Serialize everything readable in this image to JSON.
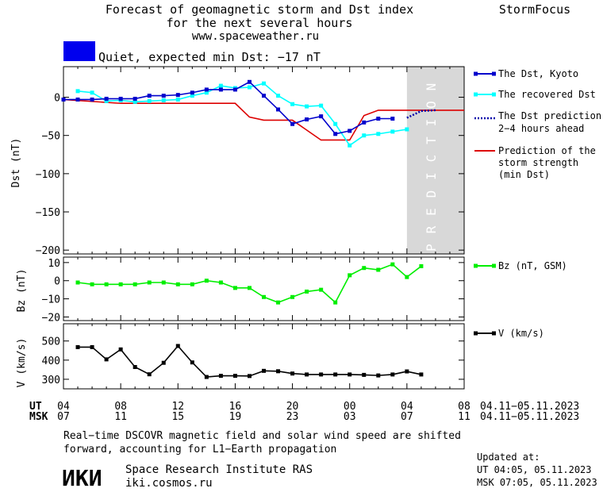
{
  "header": {
    "title_line1": "Forecast of geomagnetic storm and Dst index",
    "title_line2": "for the next several hours",
    "site": "www.spaceweather.ru",
    "brand": "StormFocus"
  },
  "status": {
    "text": "Quiet, expected min Dst: −17 nT",
    "color": "#0000ee"
  },
  "prediction_label": "PREDICTION",
  "colors": {
    "dst_kyoto": "#0000cc",
    "dst_recovered": "#00ffff",
    "dst_prediction": "#0000aa",
    "storm_strength": "#dd0000",
    "bz": "#00ee00",
    "v": "#000000",
    "prediction_band": "#d8d8d8"
  },
  "legend": {
    "dst_kyoto": "The Dst, Kyoto",
    "dst_recovered": "The recovered Dst",
    "dst_prediction_l1": "The Dst prediction",
    "dst_prediction_l2": "2−4 hours ahead",
    "storm_l1": "Prediction of the",
    "storm_l2": "storm strength",
    "storm_l3": "(min Dst)",
    "bz": "Bz (nT, GSM)",
    "v": "V (km/s)"
  },
  "axes": {
    "dst_ylabel": "Dst (nT)",
    "bz_ylabel": "Bz (nT)",
    "v_ylabel": "V (km/s)",
    "ut_label": "UT",
    "msk_label": "MSK",
    "ut_ticks": [
      "04",
      "08",
      "12",
      "16",
      "20",
      "00",
      "04",
      "08"
    ],
    "msk_ticks": [
      "07",
      "11",
      "15",
      "19",
      "23",
      "03",
      "07",
      "11"
    ],
    "ut_range": "04.11−05.11.2023",
    "msk_range": "04.11−05.11.2023"
  },
  "chart_data": [
    {
      "type": "line",
      "panel": "Dst",
      "ylabel": "Dst (nT)",
      "ylim": [
        -205,
        40
      ],
      "yticks": [
        0,
        -50,
        -100,
        -150,
        -200
      ],
      "xlim": [
        0,
        28
      ],
      "x_unit": "hours since 04 UT 04.11.2023",
      "prediction_start": 24,
      "series": [
        {
          "name": "The Dst, Kyoto",
          "x": [
            0,
            1,
            2,
            3,
            4,
            5,
            6,
            7,
            8,
            9,
            10,
            11,
            12,
            13,
            14,
            15,
            16,
            17,
            18,
            19,
            20,
            21,
            22,
            23
          ],
          "values": [
            -3,
            -3,
            -3,
            -2,
            -2,
            -2,
            2,
            2,
            3,
            6,
            10,
            10,
            10,
            20,
            2,
            -16,
            -35,
            -29,
            -25,
            -48,
            -44,
            -33,
            -28,
            -28
          ]
        },
        {
          "name": "The recovered Dst",
          "x": [
            1,
            2,
            3,
            4,
            5,
            6,
            7,
            8,
            9,
            10,
            11,
            12,
            13,
            14,
            15,
            16,
            17,
            18,
            19,
            20,
            21,
            22,
            23,
            24
          ],
          "values": [
            8,
            6,
            -5,
            -4,
            -6,
            -5,
            -4,
            -3,
            2,
            6,
            15,
            12,
            13,
            18,
            2,
            -9,
            -12,
            -11,
            -35,
            -63,
            -50,
            -48,
            -45,
            -42
          ]
        },
        {
          "name": "The Dst prediction 2−4 hours ahead",
          "x": [
            24,
            25,
            26
          ],
          "values": [
            -27,
            -18,
            -17
          ]
        },
        {
          "name": "Prediction of the storm strength (min Dst)",
          "x": [
            0,
            4,
            12,
            13,
            14,
            16,
            18,
            19,
            20,
            21,
            22,
            28
          ],
          "values": [
            -3,
            -8,
            -8,
            -26,
            -30,
            -30,
            -56,
            -56,
            -56,
            -24,
            -17,
            -17
          ]
        }
      ]
    },
    {
      "type": "line",
      "panel": "Bz",
      "ylabel": "Bz (nT)",
      "ylim": [
        -22,
        13
      ],
      "yticks": [
        10,
        0,
        -10,
        -20
      ],
      "series": [
        {
          "name": "Bz (nT, GSM)",
          "x": [
            1,
            2,
            3,
            4,
            5,
            6,
            7,
            8,
            9,
            10,
            11,
            12,
            13,
            14,
            15,
            16,
            17,
            18,
            19,
            20,
            21,
            22,
            23,
            24,
            25
          ],
          "values": [
            -1,
            -2,
            -2,
            -2,
            -2,
            -1,
            -1,
            -2,
            -2,
            0,
            -1,
            -4,
            -4,
            -9,
            -12,
            -9,
            -6,
            -5,
            -12,
            3,
            7,
            6,
            9,
            2,
            8
          ]
        }
      ]
    },
    {
      "type": "line",
      "panel": "V",
      "ylabel": "V (km/s)",
      "ylim": [
        250,
        590
      ],
      "yticks": [
        500,
        400,
        300
      ],
      "series": [
        {
          "name": "V (km/s)",
          "x": [
            1,
            2,
            3,
            4,
            5,
            6,
            7,
            8,
            9,
            10,
            11,
            12,
            13,
            14,
            15,
            16,
            17,
            18,
            19,
            20,
            21,
            22,
            23,
            24,
            25
          ],
          "values": [
            468,
            468,
            404,
            456,
            364,
            326,
            386,
            474,
            388,
            312,
            318,
            318,
            317,
            344,
            342,
            330,
            325,
            325,
            325,
            325,
            323,
            320,
            325,
            341,
            325
          ]
        }
      ]
    }
  ],
  "footer": {
    "note_l1": "Real−time DSCOVR magnetic field and solar wind speed are shifted",
    "note_l2": "forward, accounting for L1−Earth propagation",
    "logo": "ИКИ",
    "institute": "Space Research Institute RAS",
    "institute_url": "iki.cosmos.ru",
    "updated_label": "Updated at:",
    "updated_ut": "UT   04:05, 05.11.2023",
    "updated_msk": "MSK 07:05, 05.11.2023"
  }
}
